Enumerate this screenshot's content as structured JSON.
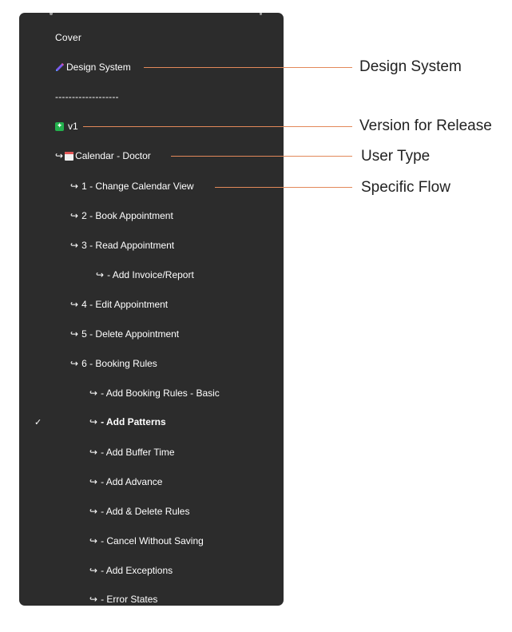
{
  "layers_panel": {
    "items": [
      {
        "label": "Cover",
        "icon": ""
      },
      {
        "label": "Design System",
        "icon": "pencil-icon"
      },
      {
        "label": "-------------------",
        "icon": ""
      },
      {
        "label": "v1",
        "icon": "sparkle-icon"
      },
      {
        "label": "Calendar - Doctor",
        "icon": "calendar-icon",
        "arrow": "↪"
      },
      {
        "label": "1 - Change Calendar View",
        "arrow": "↪"
      },
      {
        "label": "2 - Book Appointment",
        "arrow": "↪"
      },
      {
        "label": "3 - Read Appointment",
        "arrow": "↪"
      },
      {
        "label": "- Add Invoice/Report",
        "arrow": "↪"
      },
      {
        "label": "4 - Edit Appointment",
        "arrow": "↪"
      },
      {
        "label": "5 - Delete Appointment",
        "arrow": "↪"
      },
      {
        "label": "6 - Booking Rules",
        "arrow": "↪"
      },
      {
        "label": "- Add Booking Rules - Basic",
        "arrow": "↪"
      },
      {
        "label": "- Add Patterns",
        "arrow": "↪",
        "checked": true
      },
      {
        "label": "- Add Buffer Time",
        "arrow": "↪"
      },
      {
        "label": "- Add Advance",
        "arrow": "↪"
      },
      {
        "label": "- Add & Delete Rules",
        "arrow": "↪"
      },
      {
        "label": "- Cancel Without Saving",
        "arrow": "↪"
      },
      {
        "label": "- Add Exceptions",
        "arrow": "↪"
      },
      {
        "label": "- Error States",
        "arrow": "↪"
      }
    ],
    "check_glyph": "✓"
  },
  "annotations": [
    {
      "label": "Design System"
    },
    {
      "label": "Version for Release"
    },
    {
      "label": "User Type"
    },
    {
      "label": "Specific Flow"
    }
  ],
  "colors": {
    "panel_bg": "#2c2c2c",
    "callout_line": "#e2895a",
    "sparkle_badge": "#23b14d",
    "text_light": "#ffffff",
    "text_dark": "#222222"
  }
}
